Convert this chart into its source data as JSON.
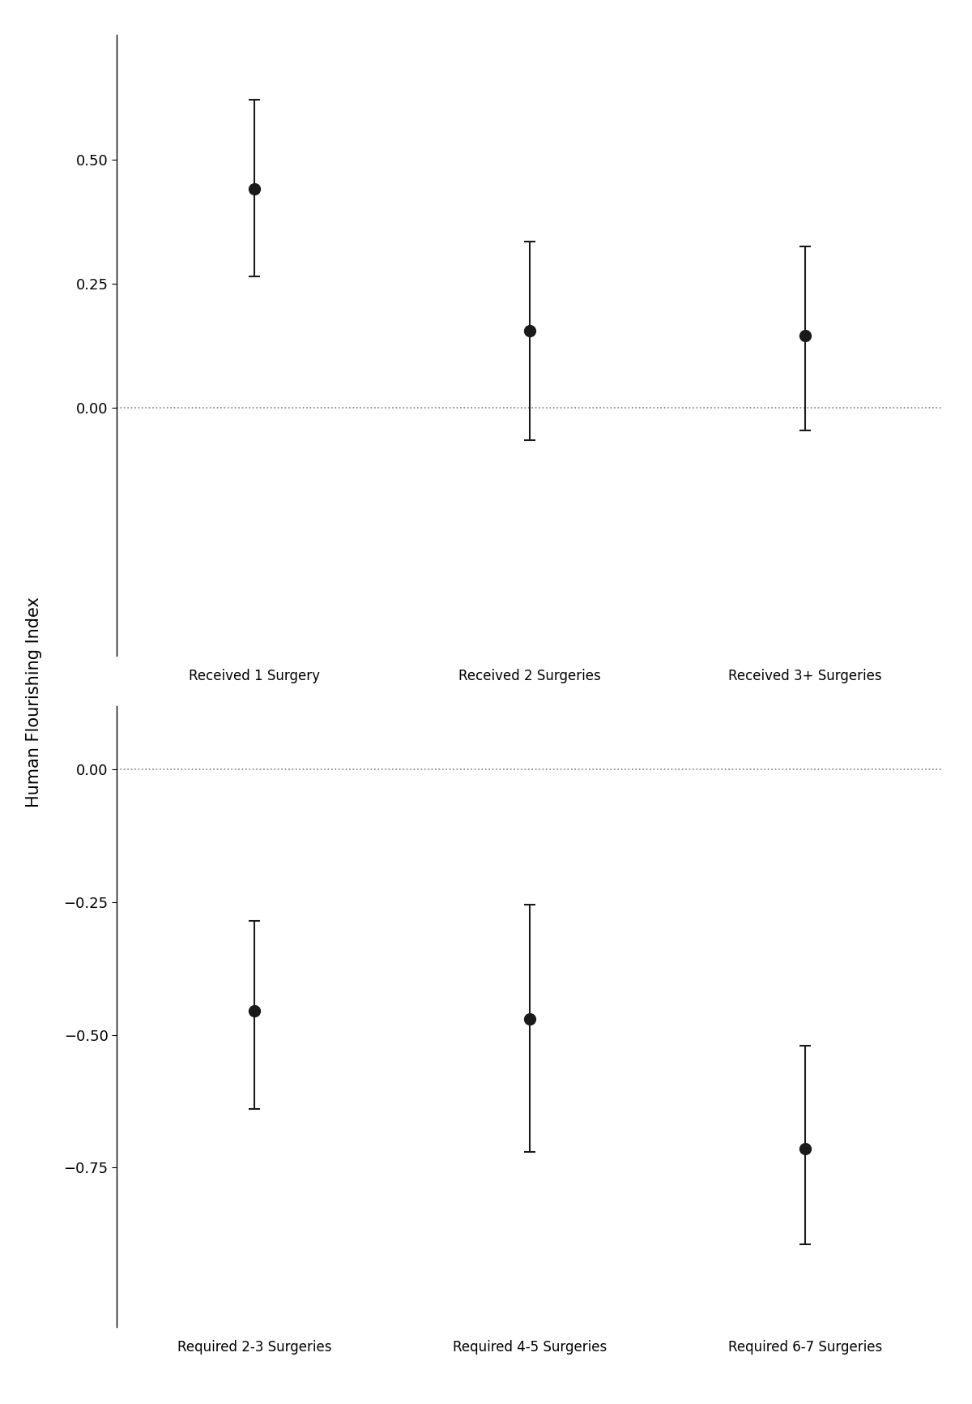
{
  "panel1": {
    "x_labels": [
      "Received 1 Surgery",
      "Received 2 Surgeries",
      "Received 3+ Surgeries"
    ],
    "x_positions": [
      1,
      2,
      3
    ],
    "y_values": [
      0.44,
      0.155,
      0.145
    ],
    "ci_lower": [
      0.265,
      -0.065,
      -0.045
    ],
    "ci_upper": [
      0.62,
      0.335,
      0.325
    ],
    "ylim": [
      -0.5,
      0.75
    ],
    "yticks": [
      0.0,
      0.25,
      0.5
    ],
    "zero_line": 0.0
  },
  "panel2": {
    "x_labels": [
      "Required 2-3 Surgeries",
      "Required 4-5 Surgeries",
      "Required 6-7 Surgeries"
    ],
    "x_positions": [
      1,
      2,
      3
    ],
    "y_values": [
      -0.455,
      -0.47,
      -0.715
    ],
    "ci_lower": [
      -0.64,
      -0.72,
      -0.895
    ],
    "ci_upper": [
      -0.285,
      -0.255,
      -0.52
    ],
    "ylim": [
      -1.05,
      0.12
    ],
    "yticks": [
      -0.75,
      -0.5,
      -0.25,
      0.0
    ],
    "zero_line": 0.0
  },
  "ylabel": "Human Flourishing Index",
  "background_color": "#ffffff",
  "line_color": "#1a1a1a",
  "marker_color": "#1a1a1a",
  "marker_size": 10,
  "line_width": 1.5,
  "capsize": 5,
  "errorbar_linewidth": 1.5,
  "tick_label_fontsize": 13,
  "ylabel_fontsize": 15,
  "x_tick_fontsize": 12
}
